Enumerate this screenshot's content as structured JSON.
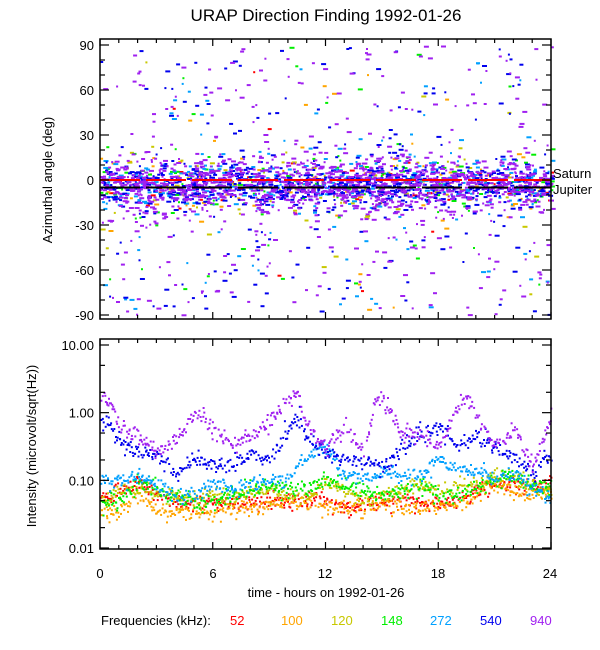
{
  "chart_data": [
    {
      "type": "scatter",
      "title": "URAP Direction Finding  1992-01-26",
      "xlabel": "",
      "ylabel": "Azimuthal angle (deg)",
      "xlim": [
        0,
        24
      ],
      "ylim": [
        -90,
        90
      ],
      "xticks": [
        0,
        6,
        12,
        18,
        24
      ],
      "yticks": [
        {
          "value": 90,
          "label": "90"
        },
        {
          "value": 60,
          "label": "60"
        },
        {
          "value": 30,
          "label": "30"
        },
        {
          "value": 0,
          "label": "0"
        },
        {
          "value": -30,
          "label": "-30"
        },
        {
          "value": -60,
          "label": "-60"
        },
        {
          "value": -90,
          "label": "-90"
        }
      ],
      "y_minor_step": 10,
      "x_minor_step": 1,
      "grid": false,
      "reference_lines": [
        {
          "name": "Saturn",
          "value": 0,
          "color": "#ff0000"
        },
        {
          "name": "Jupiter",
          "value": -5,
          "color": "#000000"
        }
      ],
      "series": [
        {
          "name": "52",
          "color": "#ff0000",
          "points": 60,
          "center": -2,
          "spread": 14
        },
        {
          "name": "100",
          "color": "#ffa500",
          "points": 90,
          "center": -2,
          "spread": 20
        },
        {
          "name": "120",
          "color": "#c8c800",
          "points": 90,
          "center": -2,
          "spread": 20
        },
        {
          "name": "148",
          "color": "#00ee00",
          "points": 160,
          "center": -2,
          "spread": 16
        },
        {
          "name": "272",
          "color": "#00a0ff",
          "points": 380,
          "center": -2,
          "spread": 16
        },
        {
          "name": "540",
          "color": "#0000ee",
          "points": 900,
          "center": -3,
          "spread": 12
        },
        {
          "name": "940",
          "color": "#a020f0",
          "points": 1400,
          "center": -3,
          "spread": 16
        }
      ]
    },
    {
      "type": "scatter",
      "title": "",
      "xlabel": "time - hours on 1992-01-26",
      "ylabel": "Intensity (microvolt/sqrt(Hz))",
      "xlim": [
        0,
        24
      ],
      "ylim": [
        0.01,
        10
      ],
      "yscale": "log",
      "xticks": [
        0,
        6,
        12,
        18,
        24
      ],
      "yticks": [
        {
          "value": 10,
          "label": "10.00"
        },
        {
          "value": 1,
          "label": "1.00"
        },
        {
          "value": 0.1,
          "label": "0.10"
        },
        {
          "value": 0.01,
          "label": "0.01"
        }
      ],
      "grid": false,
      "series": [
        {
          "name": "52",
          "color": "#ff0000",
          "trend": [
            [
              0,
              0.05
            ],
            [
              1,
              0.07
            ],
            [
              2,
              0.09
            ],
            [
              3,
              0.06
            ],
            [
              4,
              0.05
            ],
            [
              5,
              0.045
            ],
            [
              6,
              0.045
            ],
            [
              7,
              0.045
            ],
            [
              8,
              0.045
            ],
            [
              9,
              0.05
            ],
            [
              10,
              0.05
            ],
            [
              11,
              0.05
            ],
            [
              12,
              0.05
            ],
            [
              13,
              0.04
            ],
            [
              14,
              0.04
            ],
            [
              15,
              0.05
            ],
            [
              16,
              0.05
            ],
            [
              17,
              0.045
            ],
            [
              18,
              0.045
            ],
            [
              19,
              0.05
            ],
            [
              20,
              0.07
            ],
            [
              21,
              0.08
            ],
            [
              22,
              0.09
            ],
            [
              23,
              0.08
            ],
            [
              24,
              0.09
            ]
          ]
        },
        {
          "name": "100",
          "color": "#ffa500",
          "trend": [
            [
              0,
              0.033
            ],
            [
              1,
              0.035
            ],
            [
              2,
              0.06
            ],
            [
              3,
              0.035
            ],
            [
              4,
              0.033
            ],
            [
              5,
              0.035
            ],
            [
              6,
              0.035
            ],
            [
              7,
              0.04
            ],
            [
              8,
              0.04
            ],
            [
              9,
              0.045
            ],
            [
              10,
              0.05
            ],
            [
              11,
              0.045
            ],
            [
              12,
              0.04
            ],
            [
              13,
              0.04
            ],
            [
              14,
              0.04
            ],
            [
              15,
              0.045
            ],
            [
              16,
              0.04
            ],
            [
              17,
              0.04
            ],
            [
              18,
              0.04
            ],
            [
              19,
              0.045
            ],
            [
              20,
              0.06
            ],
            [
              21,
              0.09
            ],
            [
              22,
              0.07
            ],
            [
              23,
              0.06
            ],
            [
              24,
              0.06
            ]
          ]
        },
        {
          "name": "120",
          "color": "#c8c800",
          "trend": [
            [
              0,
              0.05
            ],
            [
              1,
              0.06
            ],
            [
              2,
              0.08
            ],
            [
              3,
              0.06
            ],
            [
              4,
              0.055
            ],
            [
              5,
              0.055
            ],
            [
              6,
              0.06
            ],
            [
              7,
              0.06
            ],
            [
              8,
              0.065
            ],
            [
              9,
              0.07
            ],
            [
              10,
              0.06
            ],
            [
              11,
              0.06
            ],
            [
              12,
              0.09
            ],
            [
              13,
              0.07
            ],
            [
              14,
              0.05
            ],
            [
              15,
              0.06
            ],
            [
              16,
              0.07
            ],
            [
              17,
              0.08
            ],
            [
              18,
              0.07
            ],
            [
              19,
              0.08
            ],
            [
              20,
              0.09
            ],
            [
              21,
              0.12
            ],
            [
              22,
              0.1
            ],
            [
              23,
              0.08
            ],
            [
              24,
              0.07
            ]
          ]
        },
        {
          "name": "148",
          "color": "#00ee00",
          "trend": [
            [
              0,
              0.05
            ],
            [
              1,
              0.045
            ],
            [
              2,
              0.1
            ],
            [
              3,
              0.07
            ],
            [
              4,
              0.06
            ],
            [
              5,
              0.045
            ],
            [
              6,
              0.045
            ],
            [
              7,
              0.065
            ],
            [
              8,
              0.07
            ],
            [
              9,
              0.08
            ],
            [
              10,
              0.075
            ],
            [
              11,
              0.07
            ],
            [
              12,
              0.1
            ],
            [
              13,
              0.08
            ],
            [
              14,
              0.07
            ],
            [
              15,
              0.06
            ],
            [
              16,
              0.07
            ],
            [
              17,
              0.09
            ],
            [
              18,
              0.06
            ],
            [
              19,
              0.06
            ],
            [
              20,
              0.08
            ],
            [
              21,
              0.1
            ],
            [
              22,
              0.12
            ],
            [
              23,
              0.08
            ],
            [
              24,
              0.08
            ]
          ]
        },
        {
          "name": "272",
          "color": "#00a0ff",
          "trend": [
            [
              0,
              0.09
            ],
            [
              1,
              0.1
            ],
            [
              2,
              0.12
            ],
            [
              3,
              0.08
            ],
            [
              4,
              0.06
            ],
            [
              5,
              0.06
            ],
            [
              6,
              0.09
            ],
            [
              7,
              0.07
            ],
            [
              8,
              0.09
            ],
            [
              9,
              0.1
            ],
            [
              10,
              0.1
            ],
            [
              11,
              0.25
            ],
            [
              12,
              0.3
            ],
            [
              13,
              0.12
            ],
            [
              14,
              0.11
            ],
            [
              15,
              0.13
            ],
            [
              16,
              0.12
            ],
            [
              17,
              0.12
            ],
            [
              18,
              0.2
            ],
            [
              19,
              0.15
            ],
            [
              20,
              0.13
            ],
            [
              21,
              0.11
            ],
            [
              22,
              0.12
            ],
            [
              23,
              0.08
            ],
            [
              24,
              0.05
            ]
          ]
        },
        {
          "name": "540",
          "color": "#0000ee",
          "trend": [
            [
              0,
              0.8
            ],
            [
              0.5,
              0.7
            ],
            [
              1,
              0.35
            ],
            [
              2,
              0.25
            ],
            [
              3,
              0.25
            ],
            [
              4,
              0.12
            ],
            [
              5,
              0.2
            ],
            [
              6,
              0.18
            ],
            [
              7,
              0.16
            ],
            [
              8,
              0.25
            ],
            [
              9,
              0.2
            ],
            [
              10,
              0.6
            ],
            [
              10.5,
              0.9
            ],
            [
              11,
              0.4
            ],
            [
              12,
              0.25
            ],
            [
              13,
              0.2
            ],
            [
              14,
              0.2
            ],
            [
              15,
              0.15
            ],
            [
              16,
              0.3
            ],
            [
              17,
              0.5
            ],
            [
              18,
              0.6
            ],
            [
              19,
              0.3
            ],
            [
              20,
              0.45
            ],
            [
              21,
              0.3
            ],
            [
              22,
              0.22
            ],
            [
              23,
              0.12
            ],
            [
              24,
              0.25
            ]
          ]
        },
        {
          "name": "940",
          "color": "#a020f0",
          "trend": [
            [
              0,
              1.7
            ],
            [
              0.5,
              1.4
            ],
            [
              1,
              0.6
            ],
            [
              2,
              0.45
            ],
            [
              3,
              0.25
            ],
            [
              4,
              0.4
            ],
            [
              5,
              1.0
            ],
            [
              6,
              0.6
            ],
            [
              7,
              0.3
            ],
            [
              8,
              0.5
            ],
            [
              9,
              0.7
            ],
            [
              10,
              1.6
            ],
            [
              10.5,
              2.0
            ],
            [
              11,
              0.6
            ],
            [
              12,
              0.3
            ],
            [
              13,
              0.6
            ],
            [
              14,
              0.3
            ],
            [
              14.7,
              1.8
            ],
            [
              15,
              1.5
            ],
            [
              16,
              0.5
            ],
            [
              17,
              0.5
            ],
            [
              18,
              0.3
            ],
            [
              19,
              1.3
            ],
            [
              19.5,
              1.8
            ],
            [
              20,
              0.9
            ],
            [
              21,
              0.3
            ],
            [
              22,
              0.6
            ],
            [
              23,
              0.15
            ],
            [
              24,
              0.9
            ]
          ]
        }
      ]
    }
  ],
  "figure": {
    "title": "URAP Direction Finding  1992-01-26",
    "xlabel": "time - hours on 1992-01-26",
    "xtick_labels": [
      "0",
      "6",
      "12",
      "18",
      "24"
    ],
    "top_ylabel": "Azimuthal angle (deg)",
    "bottom_ylabel": "Intensity (microvolt/sqrt(Hz))",
    "planet_labels": {
      "saturn": "Saturn",
      "jupiter": "Jupiter"
    },
    "legend": {
      "label": "Frequencies (kHz):",
      "placement": "bottom",
      "items": [
        {
          "text": "52",
          "color": "#ff0000"
        },
        {
          "text": "100",
          "color": "#ffa500"
        },
        {
          "text": "120",
          "color": "#c8c800"
        },
        {
          "text": "148",
          "color": "#00ee00"
        },
        {
          "text": "272",
          "color": "#00a0ff"
        },
        {
          "text": "540",
          "color": "#0000ee"
        },
        {
          "text": "940",
          "color": "#a020f0"
        }
      ]
    }
  }
}
